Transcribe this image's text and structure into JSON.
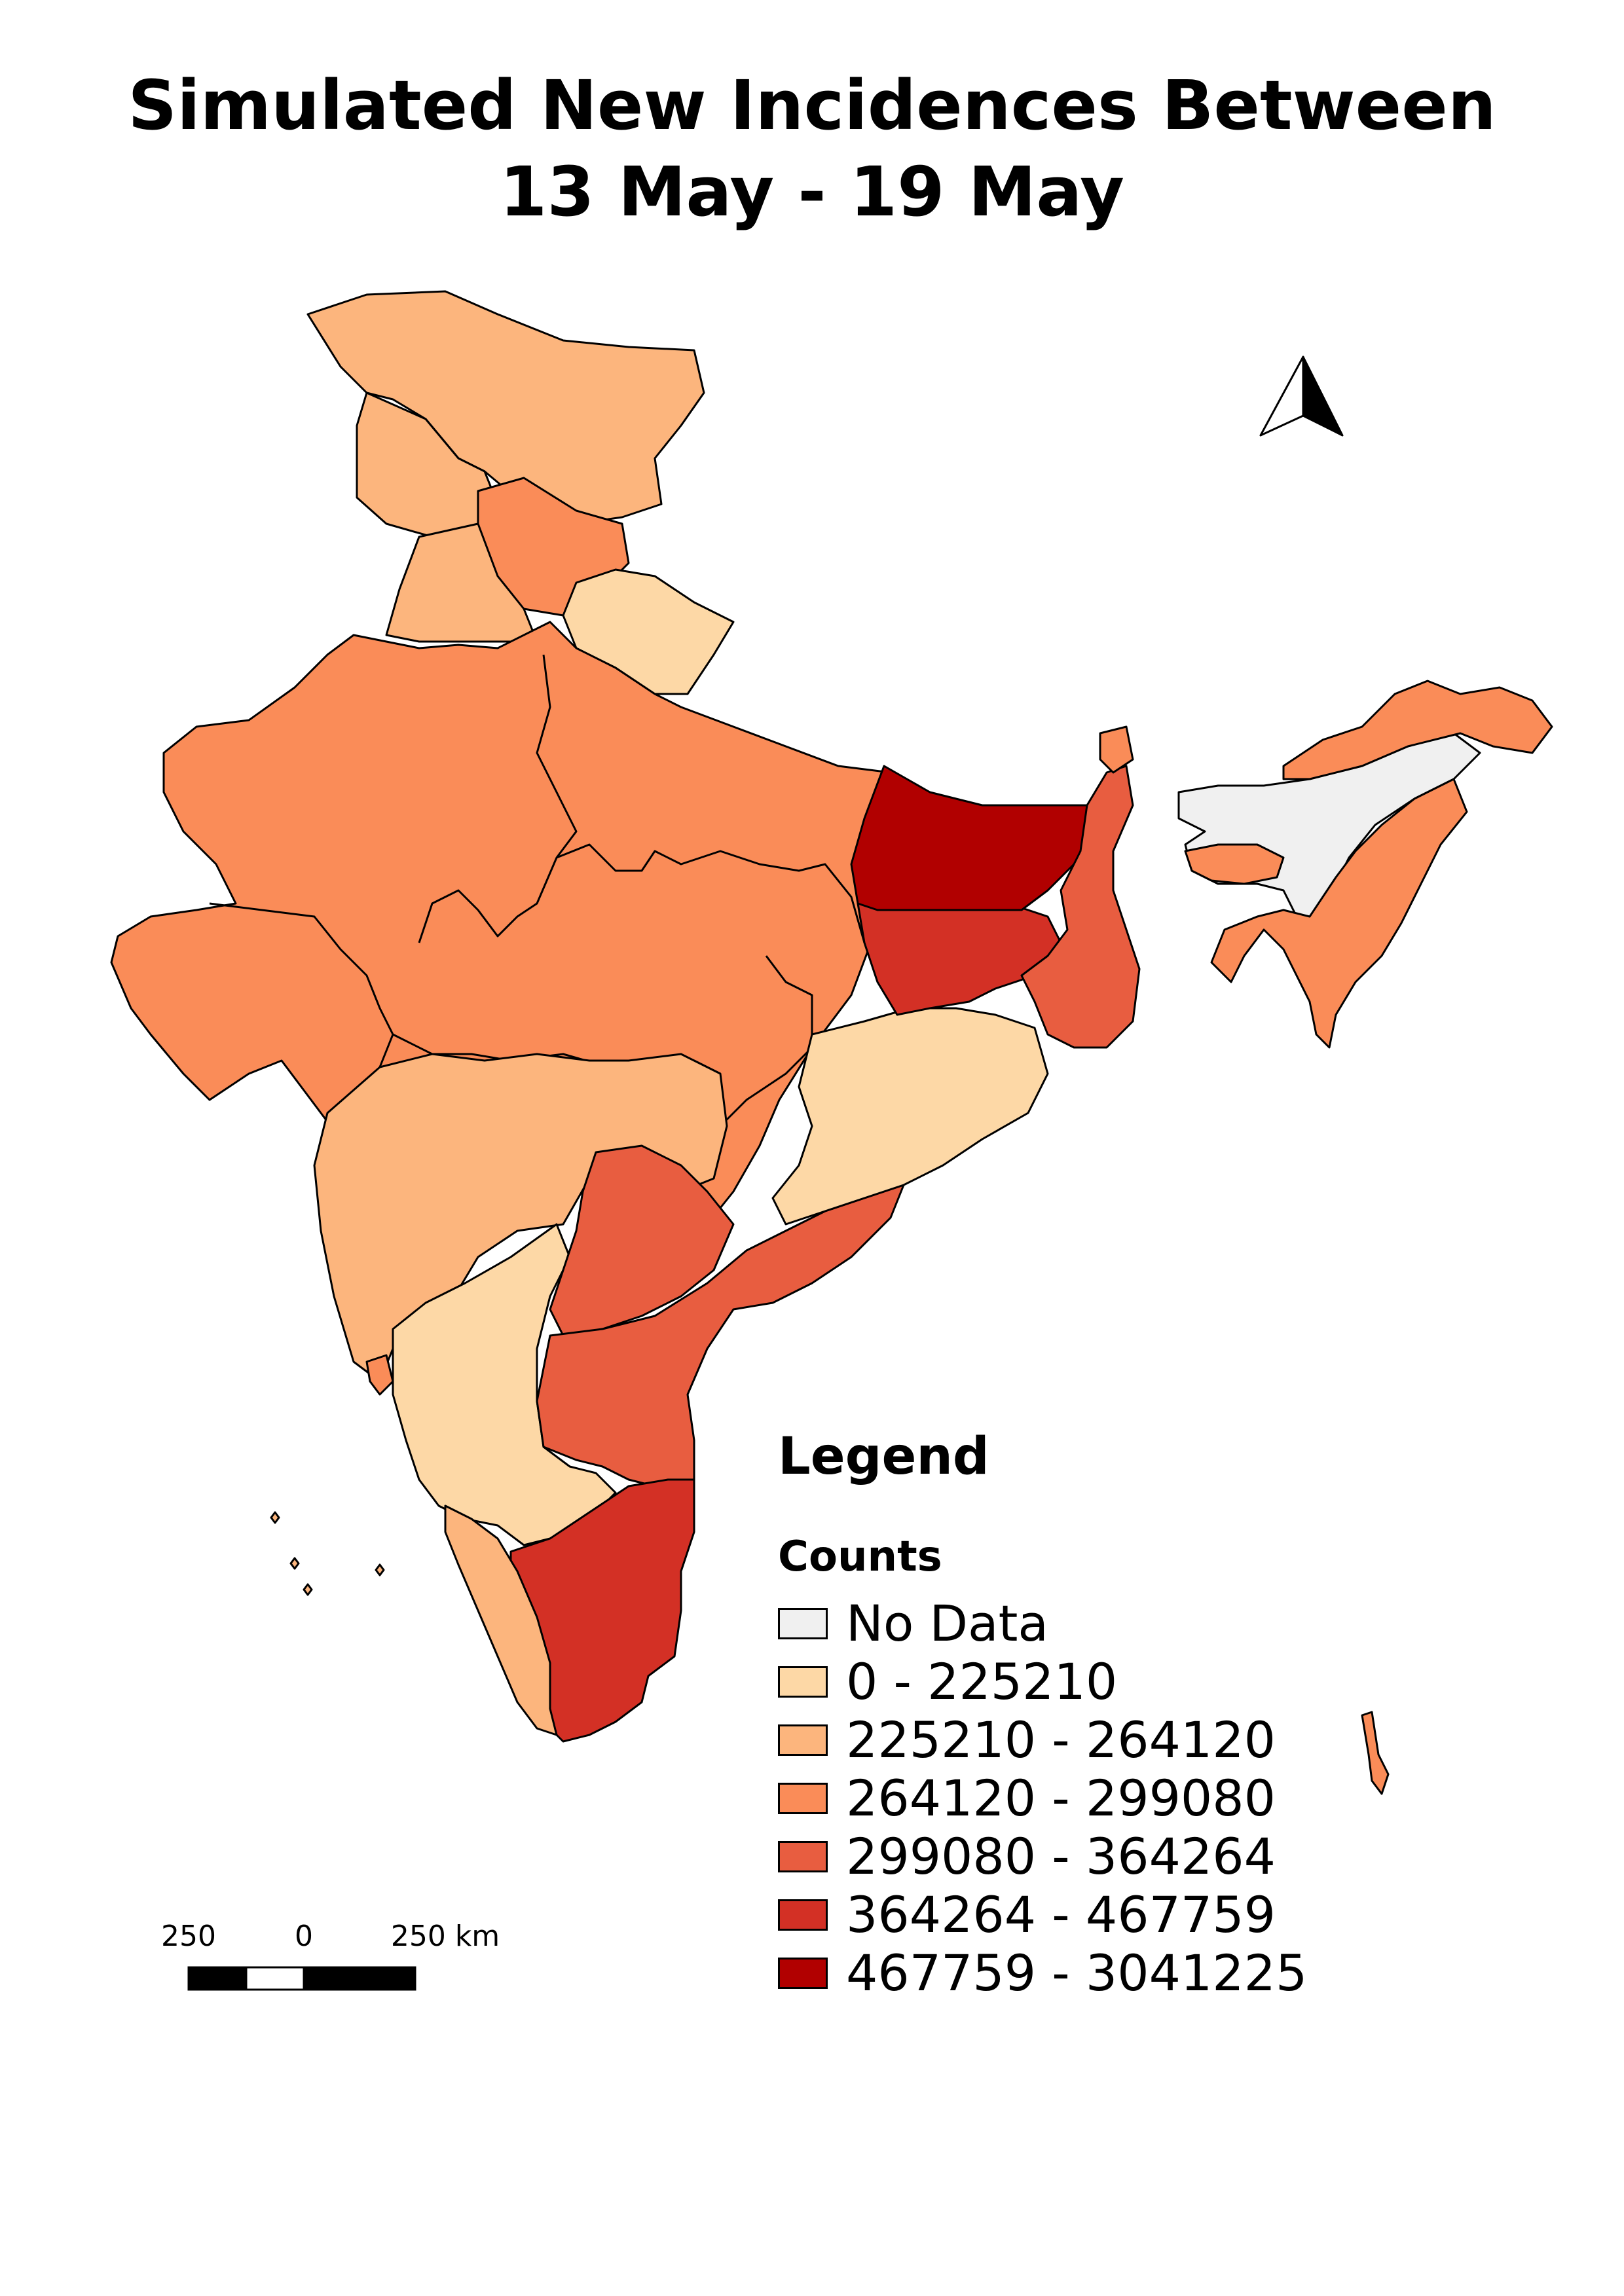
{
  "map": {
    "title_line1": "Simulated New Incidences Between",
    "title_line2": "13 May - 19 May",
    "legend": {
      "title": "Legend",
      "subtitle": "Counts",
      "items": [
        {
          "label": "No Data",
          "color": "#f0f0f0"
        },
        {
          "label": "0 - 225210",
          "color": "#fdd8a6"
        },
        {
          "label": "225210 - 264120",
          "color": "#fcb57d"
        },
        {
          "label": "264120 - 299080",
          "color": "#fa8c58"
        },
        {
          "label": "299080 - 364264",
          "color": "#e85d40"
        },
        {
          "label": "364264 - 467759",
          "color": "#d33025"
        },
        {
          "label": "467759 - 3041225",
          "color": "#b10000"
        }
      ]
    },
    "scale_bar": {
      "labels": [
        "250",
        "0",
        "250 km"
      ]
    },
    "north_arrow": "north-arrow-icon"
  }
}
